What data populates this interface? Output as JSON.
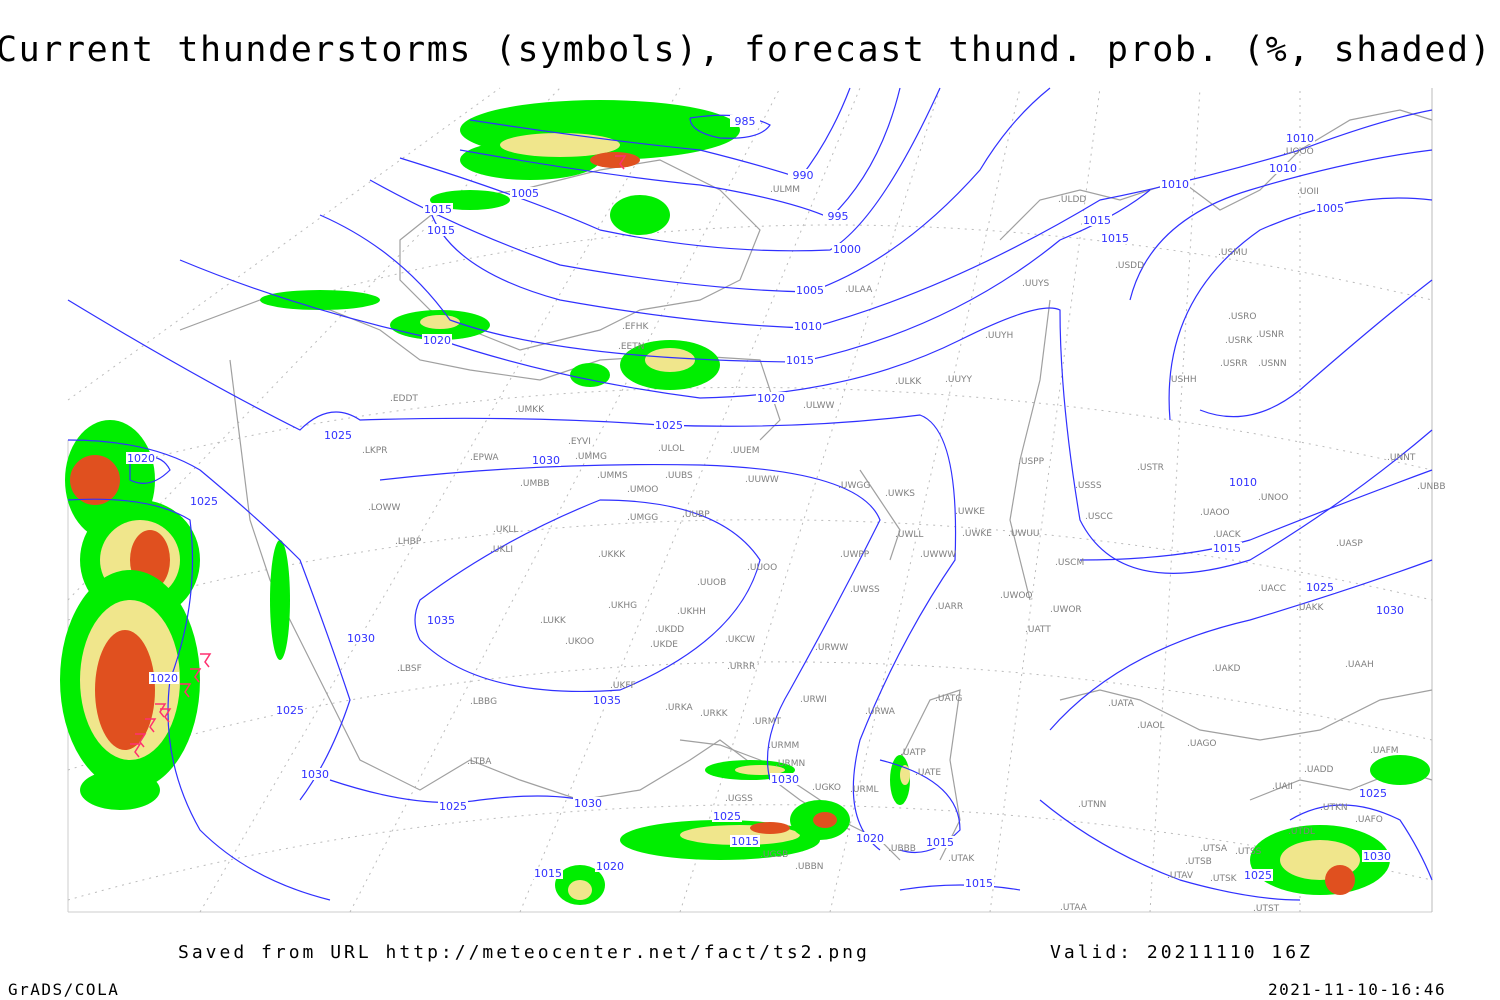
{
  "title": "Current thunderstorms (symbols), forecast thund. prob. (%, shaded)",
  "footer": {
    "saved": "Saved from URL http://meteocenter.net/fact/ts2.png",
    "valid": "Valid: 20211110 16Z",
    "software": "GrADS/COLA",
    "timestamp": "2021-11-10-16:46"
  },
  "colors": {
    "isobar": "#3030ff",
    "coast": "#a0a0a0",
    "prob_low": "#00ee00",
    "prob_mid": "#f0e68c",
    "prob_high": "#e0501f",
    "storm_symbol": "#ff3070"
  },
  "isobar_labels": [
    "985",
    "990",
    "995",
    "1000",
    "1005",
    "1005",
    "1010",
    "1010",
    "1010",
    "1015",
    "1015",
    "1015",
    "1020",
    "1020",
    "1025",
    "1025",
    "1030",
    "1030",
    "1035",
    "1035",
    "1015",
    "1020",
    "1025",
    "1020",
    "1025",
    "1030",
    "1025",
    "1030",
    "1025",
    "1030",
    "1015",
    "1020",
    "1015",
    "1020",
    "1015",
    "1015",
    "1010",
    "1005",
    "1010",
    "1015",
    "1025",
    "1030",
    "1025",
    "1030",
    "1025",
    "1015"
  ],
  "stations": [
    "EFHK",
    "EETN",
    "ULAA",
    "ULDD",
    "UUYS",
    "UUYH",
    "UUYY",
    "ULKK",
    "ULWW",
    "ULOL",
    "UUEM",
    "UUWW",
    "UWGG",
    "UWKS",
    "UWKE",
    "UWKE",
    "UWUU",
    "UWLL",
    "UWWW",
    "UWPP",
    "UWSS",
    "URWI",
    "URWW",
    "URWA",
    "UMMS",
    "UMOO",
    "UUBS",
    "UMBB",
    "UMKK",
    "EYVI",
    "UMMG",
    "EPWA",
    "EDDT",
    "LKPR",
    "LOWW",
    "LHBP",
    "UKLL",
    "UKLI",
    "UMGG",
    "UUBP",
    "UKKK",
    "UUOO",
    "UUOB",
    "UKHH",
    "UKDD",
    "UKHG",
    "UKDE",
    "LUKK",
    "UKOO",
    "UKCW",
    "URRR",
    "LBSF",
    "LBBG",
    "UKFF",
    "URKA",
    "URKK",
    "URMT",
    "URMM",
    "URMN",
    "UGSS",
    "UGKO",
    "UGSB",
    "UBBB",
    "UBBN",
    "URML",
    "UATG",
    "UATE",
    "UATP",
    "UTAK",
    "UTAA",
    "LTBA",
    "USPP",
    "USSS",
    "USCC",
    "USCM",
    "USTR",
    "UWOO",
    "UWOR",
    "UATT",
    "UARR",
    "UACC",
    "UAKK",
    "UASP",
    "UACK",
    "UAOO",
    "UNOO",
    "UNNT",
    "UNBB",
    "UAKD",
    "UAAH",
    "UATA",
    "UAOL",
    "UAFM",
    "UADD",
    "UTNN",
    "UTSA",
    "UTSB",
    "UTSS",
    "UTAV",
    "UTSK",
    "UTST",
    "UTDL",
    "UTKN",
    "UAFO",
    "USHH",
    "USRR",
    "USNN",
    "USRK",
    "USNR",
    "USRO",
    "USMU",
    "USDD",
    "UOOO",
    "UOII",
    "ULMM",
    "UAII",
    "UAGO"
  ]
}
